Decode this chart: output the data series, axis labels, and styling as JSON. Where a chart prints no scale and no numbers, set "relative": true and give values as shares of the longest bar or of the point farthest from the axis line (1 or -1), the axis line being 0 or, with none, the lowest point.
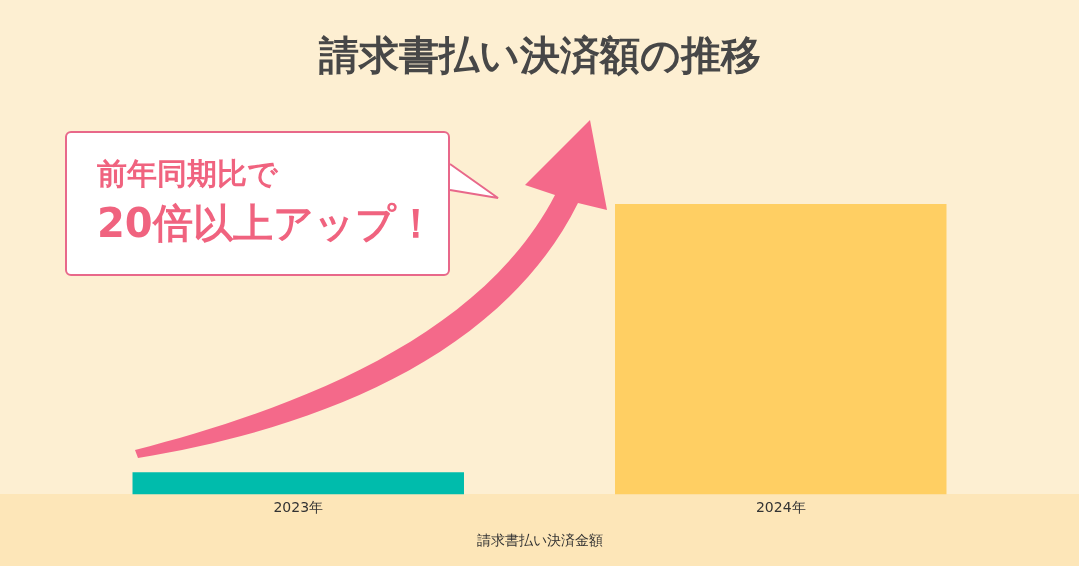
{
  "chart_data": {
    "type": "bar",
    "title": "請求書払い決済額の推移",
    "xlabel": "請求書払い決済金額",
    "categories": [
      "2023年",
      "2024年"
    ],
    "relative": true,
    "values": [
      0.076,
      1
    ],
    "colors": [
      "#00bcac",
      "#ffcf63"
    ],
    "legend": false,
    "grid": false,
    "annotations": [
      "前年同期比で",
      "20倍以上アップ！"
    ]
  }
}
